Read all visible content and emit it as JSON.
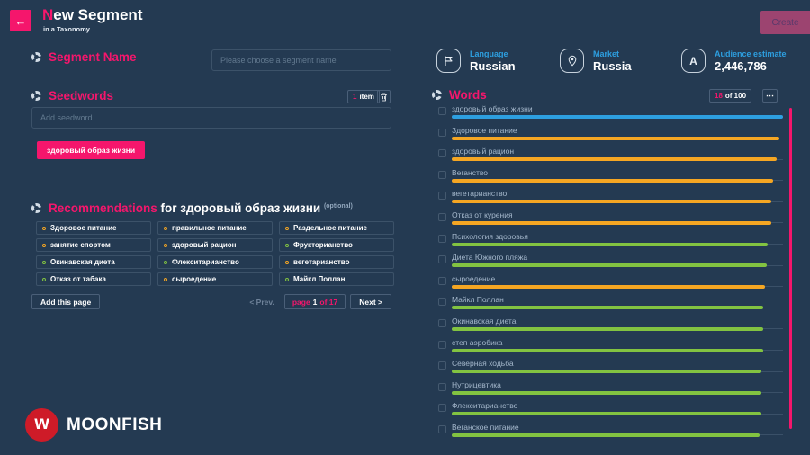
{
  "colors": {
    "background": "#243A52",
    "accent_pink": "#F5166C",
    "accent_blue": "#2D9FE0",
    "orange": "#F5A623",
    "green": "#82C341",
    "logo_red": "#CE1B28"
  },
  "header": {
    "back_icon": "←",
    "title_accent": "N",
    "title_rest": "ew Segment",
    "subtitle": "in a Taxonomy",
    "create_label": "Create"
  },
  "segment_name": {
    "label": "Segment Name",
    "placeholder": "Please choose a segment name"
  },
  "seedwords": {
    "label": "Seedwords",
    "count_value": "1",
    "count_unit": "item",
    "input_placeholder": "Add seedword",
    "tags": [
      "здоровый образ жизни"
    ]
  },
  "recommendations": {
    "label": "Recommendations",
    "for_text": " for здоровый образ жизни ",
    "optional_text": "(optional)",
    "chips": [
      {
        "label": "Здоровое питание",
        "color": "orange"
      },
      {
        "label": "правильное питание",
        "color": "orange"
      },
      {
        "label": "Раздельное питание",
        "color": "orange"
      },
      {
        "label": "занятие спортом",
        "color": "orange"
      },
      {
        "label": "здоровый рацион",
        "color": "orange"
      },
      {
        "label": "Фрукторианство",
        "color": "green"
      },
      {
        "label": "Окинавская диета",
        "color": "green"
      },
      {
        "label": "Флекситарианство",
        "color": "green"
      },
      {
        "label": "вегетарианство",
        "color": "orange"
      },
      {
        "label": "Отказ от табака",
        "color": "green"
      },
      {
        "label": "сыроедение",
        "color": "orange"
      },
      {
        "label": "Майкл Поллан",
        "color": "green"
      }
    ],
    "add_page_label": "Add this page",
    "prev_label": "< Prev.",
    "page_prefix": "page",
    "page_current": "1",
    "page_suffix": "of 17",
    "next_label": "Next >"
  },
  "summary": {
    "items": [
      {
        "icon": "flag-icon",
        "label": "Language",
        "value": "Russian"
      },
      {
        "icon": "location-pin-icon",
        "label": "Market",
        "value": "Russia"
      },
      {
        "icon": "audience-icon",
        "label": "Audience estimate",
        "value": "2,446,786"
      }
    ]
  },
  "words": {
    "label": "Words",
    "count_value": "18",
    "count_suffix": "of 100",
    "more_label": "⋯",
    "items": [
      {
        "label": "здоровый образ жизни",
        "color": "blue",
        "value": 100
      },
      {
        "label": "Здоровое питание",
        "color": "orange",
        "value": 98.8
      },
      {
        "label": "здоровый рацион",
        "color": "orange",
        "value": 98
      },
      {
        "label": "Веганство",
        "color": "orange",
        "value": 97
      },
      {
        "label": "вегетарианство",
        "color": "orange",
        "value": 96.5
      },
      {
        "label": "Отказ от курения",
        "color": "orange",
        "value": 96.5
      },
      {
        "label": "Психология здоровья",
        "color": "green",
        "value": 95.5
      },
      {
        "label": "Диета Южного пляжа",
        "color": "green",
        "value": 95
      },
      {
        "label": "сыроедение",
        "color": "orange",
        "value": 94.5
      },
      {
        "label": "Майкл Поллан",
        "color": "green",
        "value": 94
      },
      {
        "label": "Окинавская диета",
        "color": "green",
        "value": 94
      },
      {
        "label": "степ аэробика",
        "color": "green",
        "value": 94
      },
      {
        "label": "Северная ходьба",
        "color": "green",
        "value": 93.5
      },
      {
        "label": "Нутрицевтика",
        "color": "green",
        "value": 93.5
      },
      {
        "label": "Флекситарианство",
        "color": "green",
        "value": 93.5
      },
      {
        "label": "Веганское питание",
        "color": "green",
        "value": 93
      }
    ]
  },
  "brand": {
    "logo_letter": "w",
    "name": "MOONFISH"
  }
}
